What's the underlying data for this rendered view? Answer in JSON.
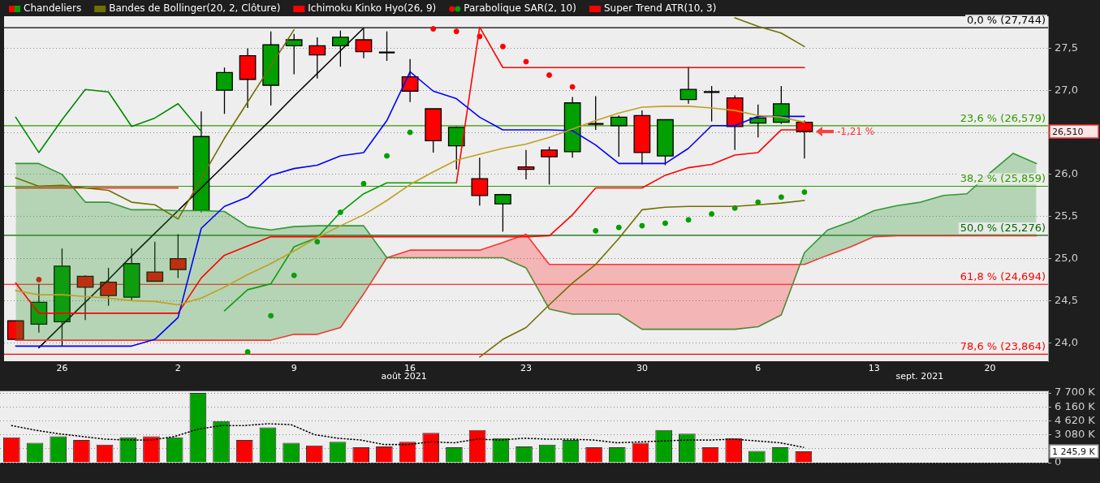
{
  "chart_data": [
    {
      "type": "candlestick",
      "categories": [
        null,
        null,
        "26",
        null,
        null,
        null,
        null,
        "2",
        null,
        null,
        null,
        null,
        "9",
        null,
        null,
        null,
        null,
        "16",
        null,
        null,
        null,
        null,
        "23",
        null,
        null,
        null,
        null,
        "30",
        null,
        null,
        null,
        null,
        "6",
        null,
        null,
        null,
        null,
        "13",
        null,
        null,
        null,
        null,
        "20",
        null,
        null
      ],
      "series": [
        {
          "name": "Chandeliers",
          "ohlc": [
            [
              24.26,
              24.26,
              24.04,
              24.04
            ],
            [
              24.22,
              24.7,
              24.12,
              24.48
            ],
            [
              24.25,
              25.12,
              23.96,
              24.91
            ],
            [
              24.79,
              24.8,
              24.27,
              24.66
            ],
            [
              24.72,
              24.89,
              24.44,
              24.56
            ],
            [
              24.54,
              25.12,
              24.5,
              24.94
            ],
            [
              24.84,
              25.2,
              24.73,
              24.73
            ],
            [
              25.0,
              25.29,
              24.77,
              24.87
            ],
            [
              25.57,
              26.75,
              25.55,
              26.45
            ],
            [
              27.0,
              27.27,
              26.72,
              27.21
            ],
            [
              27.41,
              27.5,
              26.79,
              27.13
            ],
            [
              27.06,
              27.7,
              26.82,
              27.54
            ],
            [
              27.53,
              27.67,
              27.19,
              27.6
            ],
            [
              27.53,
              27.63,
              27.14,
              27.42
            ],
            [
              27.53,
              27.71,
              27.28,
              27.63
            ],
            [
              27.6,
              27.73,
              27.38,
              27.46
            ],
            [
              27.45,
              27.7,
              27.35,
              27.45
            ],
            [
              27.16,
              27.37,
              26.86,
              26.99
            ],
            [
              26.78,
              26.78,
              26.26,
              26.4
            ],
            [
              26.34,
              26.57,
              26.06,
              26.56
            ],
            [
              25.95,
              26.2,
              25.63,
              25.75
            ],
            [
              25.65,
              25.77,
              25.32,
              25.76
            ],
            [
              26.09,
              26.29,
              25.94,
              26.06
            ],
            [
              26.29,
              26.33,
              25.88,
              26.21
            ],
            [
              26.27,
              26.92,
              26.2,
              26.85
            ],
            [
              26.6,
              26.93,
              26.53,
              26.6
            ],
            [
              26.58,
              26.7,
              26.21,
              26.68
            ],
            [
              26.7,
              26.76,
              26.12,
              26.26
            ],
            [
              26.22,
              26.65,
              26.11,
              26.65
            ],
            [
              26.89,
              27.28,
              26.84,
              27.01
            ],
            [
              26.98,
              27.05,
              26.63,
              26.98
            ],
            [
              26.91,
              26.94,
              26.29,
              26.57
            ],
            [
              26.61,
              26.83,
              26.44,
              26.67
            ],
            [
              26.62,
              27.05,
              26.6,
              26.84
            ],
            [
              26.62,
              26.64,
              26.19,
              26.51
            ],
            null,
            null,
            null,
            null,
            null,
            null,
            null,
            null,
            null,
            null
          ],
          "colors": [
            "#ff0000",
            "#00a000",
            "#00a000",
            "#ff0000",
            "#ff0000",
            "#00a000",
            "#ff0000",
            "#ff0000",
            "#00a000",
            "#00a000",
            "#ff0000",
            "#00a000",
            "#00a000",
            "#ff0000",
            "#00a000",
            "#ff0000",
            "#000000",
            "#ff0000",
            "#ff0000",
            "#00a000",
            "#ff0000",
            "#00a000",
            "#ff0000",
            "#ff0000",
            "#00a000",
            "#000000",
            "#00a000",
            "#ff0000",
            "#00a000",
            "#00a000",
            "#000000",
            "#ff0000",
            "#00a000",
            "#00a000",
            "#ff0000",
            null,
            null,
            null,
            null,
            null,
            null,
            null,
            null,
            null,
            null
          ]
        },
        {
          "type": "line",
          "name": "Bandes de Bollinger(20, 2, Clôture)",
          "color": "#707000",
          "values": [
            25.96,
            25.86,
            25.87,
            25.84,
            25.81,
            25.67,
            25.64,
            25.47,
            25.95,
            26.43,
            26.86,
            27.29,
            27.72,
            null,
            null,
            null,
            null,
            null,
            null,
            null,
            null,
            null,
            null,
            null,
            null,
            null,
            null,
            null,
            null,
            null,
            null,
            27.86,
            27.76,
            27.68,
            27.52,
            null,
            null,
            null,
            null,
            null,
            null,
            null,
            null,
            null,
            null
          ]
        },
        {
          "type": "line",
          "color": "#c0a020",
          "values": [
            24.62,
            24.57,
            24.57,
            24.55,
            24.53,
            24.5,
            24.49,
            24.45,
            24.53,
            24.66,
            24.81,
            24.94,
            25.09,
            25.25,
            25.39,
            25.52,
            25.69,
            25.88,
            26.03,
            26.17,
            26.24,
            26.31,
            26.36,
            26.44,
            26.54,
            26.64,
            26.73,
            26.8,
            26.81,
            26.81,
            26.79,
            26.76,
            26.7,
            26.68,
            26.62,
            null,
            null,
            null,
            null,
            null,
            null,
            null,
            null,
            null,
            null
          ]
        },
        {
          "type": "line",
          "color": "#707000",
          "values": [
            null,
            null,
            null,
            null,
            null,
            null,
            null,
            null,
            null,
            null,
            null,
            null,
            null,
            null,
            null,
            null,
            null,
            null,
            null,
            null,
            23.83,
            24.04,
            24.18,
            24.45,
            24.71,
            24.93,
            25.24,
            25.58,
            25.61,
            25.62,
            25.62,
            25.62,
            25.64,
            25.66,
            25.69,
            null,
            null,
            null,
            null,
            null,
            null,
            null,
            null,
            null,
            null
          ]
        },
        {
          "type": "line",
          "color": "#0000ff",
          "values": [
            23.96,
            23.96,
            23.96,
            23.96,
            23.96,
            23.96,
            24.04,
            24.3,
            25.36,
            25.62,
            25.73,
            25.99,
            26.07,
            26.11,
            26.22,
            26.26,
            26.64,
            27.22,
            26.99,
            26.9,
            26.68,
            26.53,
            26.53,
            26.53,
            26.52,
            26.35,
            26.13,
            26.13,
            26.13,
            26.31,
            26.58,
            26.58,
            26.69,
            26.69,
            26.69,
            null,
            null,
            null,
            null,
            null,
            null,
            null,
            null,
            null,
            null
          ]
        },
        {
          "type": "line",
          "name": "Ichimoku Kinko Hyo(26, 9)",
          "color": "#ff0000",
          "values": [
            24.71,
            24.35,
            24.35,
            24.35,
            24.35,
            24.35,
            24.35,
            24.35,
            24.77,
            25.04,
            25.15,
            25.26,
            25.26,
            25.26,
            25.26,
            25.26,
            25.26,
            25.26,
            25.26,
            25.26,
            25.26,
            25.26,
            25.26,
            25.27,
            25.52,
            25.84,
            25.84,
            25.84,
            25.99,
            26.08,
            26.12,
            26.23,
            26.26,
            26.53,
            26.53,
            null,
            null,
            null,
            null,
            null,
            null,
            null,
            null,
            null,
            null
          ]
        },
        {
          "type": "line",
          "color": "#008800",
          "values": [
            26.68,
            26.26,
            26.65,
            27.01,
            26.98,
            26.57,
            26.67,
            26.84,
            26.51,
            null,
            null,
            null,
            null,
            null,
            null,
            null,
            null,
            null,
            null,
            null,
            null,
            null,
            null,
            null,
            null,
            null,
            null,
            null,
            null,
            null,
            null,
            null,
            null,
            null,
            null,
            null,
            null,
            null,
            null,
            null,
            null,
            null,
            null,
            null,
            null
          ]
        },
        {
          "type": "line",
          "color": "#339933",
          "lower": [
            24.03,
            24.03,
            24.03,
            24.03,
            24.03,
            24.03,
            24.03,
            24.03,
            24.03,
            24.03,
            24.03,
            24.03,
            24.1,
            24.1,
            24.18,
            24.58,
            25.01,
            25.1,
            25.1,
            25.1,
            25.1,
            25.19,
            25.29,
            24.93,
            24.93,
            24.93,
            24.93,
            24.93,
            24.93,
            24.93,
            24.93,
            24.93,
            24.93,
            24.93,
            24.93,
            25.04,
            25.14,
            25.26,
            25.27,
            25.27,
            25.27,
            25.27,
            25.27,
            25.27,
            25.27
          ],
          "upper": [
            26.13,
            26.13,
            26.0,
            25.67,
            25.67,
            25.58,
            25.58,
            25.57,
            25.57,
            25.56,
            25.38,
            25.34,
            25.38,
            25.39,
            25.39,
            25.39,
            25.01,
            25.01,
            25.01,
            25.01,
            25.01,
            25.01,
            24.89,
            24.4,
            24.34,
            24.34,
            24.34,
            24.16,
            24.16,
            24.16,
            24.16,
            24.16,
            24.19,
            24.33,
            25.07,
            25.34,
            25.44,
            25.57,
            25.63,
            25.67,
            25.75,
            25.77,
            26.02,
            26.25,
            26.13
          ],
          "values": [
            26.13,
            26.13,
            26.0,
            25.67,
            25.67,
            25.58,
            25.58,
            25.57,
            25.57,
            25.56,
            25.38,
            25.34,
            25.38,
            25.39,
            25.39,
            25.39,
            25.01,
            25.01,
            25.01,
            25.01,
            25.01,
            25.01,
            24.89,
            24.4,
            24.34,
            24.34,
            24.34,
            24.16,
            24.16,
            24.16,
            24.16,
            24.16,
            24.19,
            24.33,
            25.07,
            25.34,
            25.44,
            25.57,
            25.63,
            25.67,
            25.75,
            25.77,
            26.02,
            26.25,
            26.13
          ]
        },
        {
          "type": "line",
          "color": "#ff3333",
          "values": [
            24.03,
            24.03,
            24.03,
            24.03,
            24.03,
            24.03,
            24.03,
            24.03,
            24.03,
            24.03,
            24.03,
            24.03,
            24.1,
            24.1,
            24.18,
            24.58,
            25.01,
            25.1,
            25.1,
            25.1,
            25.1,
            25.19,
            25.29,
            24.93,
            24.93,
            24.93,
            24.93,
            24.93,
            24.93,
            24.93,
            24.93,
            24.93,
            24.93,
            24.93,
            24.93,
            25.04,
            25.14,
            25.26,
            25.27,
            25.27,
            25.27,
            25.27,
            25.27,
            25.27,
            25.27
          ]
        },
        {
          "type": "scatter",
          "name": "Parabolique SAR(2, 10)",
          "marker": "circle",
          "values": [
            null,
            24.75,
            null,
            null,
            null,
            null,
            null,
            null,
            null,
            null,
            23.89,
            24.32,
            24.8,
            25.2,
            25.55,
            25.89,
            26.22,
            26.5,
            27.73,
            27.7,
            27.64,
            27.52,
            27.34,
            27.18,
            27.04,
            25.33,
            25.37,
            25.39,
            25.42,
            25.46,
            25.53,
            25.6,
            25.67,
            25.73,
            25.79,
            null,
            null,
            null,
            null,
            null,
            null,
            null,
            null,
            null,
            null
          ],
          "colors": [
            null,
            "#ff0000",
            null,
            null,
            null,
            null,
            null,
            null,
            null,
            null,
            "#00a000",
            "#00a000",
            "#00a000",
            "#00a000",
            "#00a000",
            "#00a000",
            "#00a000",
            "#00a000",
            "#ff0000",
            "#ff0000",
            "#ff0000",
            "#ff0000",
            "#ff0000",
            "#ff0000",
            "#ff0000",
            "#00a000",
            "#00a000",
            "#00a000",
            "#00a000",
            "#00a000",
            "#00a000",
            "#00a000",
            "#00a000",
            "#00a000",
            "#00a000",
            null,
            null,
            null,
            null,
            null,
            null,
            null,
            null,
            null,
            null
          ]
        },
        {
          "type": "line",
          "name": "Super Trend ATR(10, 3)",
          "color": "#ff0000",
          "values": [
            25.84,
            25.84,
            25.84,
            25.84,
            25.84,
            25.84,
            25.84,
            25.84,
            null,
            null,
            null,
            null,
            null,
            null,
            null,
            null,
            null,
            null,
            null,
            25.9,
            27.75,
            27.27,
            27.27,
            27.27,
            27.27,
            27.27,
            27.27,
            27.27,
            27.27,
            27.27,
            27.27,
            27.27,
            27.27,
            27.27,
            27.27,
            null,
            null,
            null,
            null,
            null,
            null,
            null,
            null,
            null,
            null
          ]
        },
        {
          "type": "line",
          "color": "#00a000",
          "values": [
            null,
            null,
            null,
            null,
            null,
            null,
            null,
            null,
            null,
            24.38,
            24.63,
            24.7,
            25.14,
            25.25,
            25.55,
            25.77,
            25.9,
            25.9,
            25.9,
            25.9,
            null,
            null,
            null,
            null,
            null,
            null,
            null,
            null,
            null,
            null,
            null,
            null,
            null,
            null,
            null,
            null,
            null,
            null,
            null,
            null,
            null,
            null,
            null,
            null,
            null
          ]
        },
        {
          "type": "line",
          "color": "#000000",
          "values": [
            null,
            23.94,
            24.21,
            24.48,
            24.75,
            25.03,
            25.3,
            25.57,
            25.84,
            26.11,
            26.38,
            26.65,
            26.93,
            27.2,
            27.47,
            27.74,
            null,
            null,
            null,
            null,
            null,
            null,
            null,
            null,
            null,
            null,
            null,
            null,
            null,
            null,
            null,
            null,
            null,
            null,
            null,
            null,
            null,
            null,
            null,
            null,
            null,
            null,
            null,
            null,
            null
          ]
        }
      ],
      "ylim": [
        23.78,
        27.88
      ],
      "yticks": [
        {
          "value": 24.0,
          "label": "24,0"
        },
        {
          "value": 24.5,
          "label": "24,5"
        },
        {
          "value": 25.0,
          "label": "25,0"
        },
        {
          "value": 25.5,
          "label": "25,5"
        },
        {
          "value": 26.0,
          "label": "26,0"
        },
        {
          "value": 26.5,
          "label": null
        },
        {
          "value": 27.0,
          "label": "27,0"
        },
        {
          "value": 27.5,
          "label": "27,5"
        }
      ],
      "grid": "y",
      "legend": "top left",
      "ref_lines": [
        {
          "axis": "y",
          "value": 27.744,
          "label": "0,0 % (27,744)",
          "color": "#000000"
        },
        {
          "axis": "y",
          "value": 26.579,
          "label": "23,6 % (26,579)",
          "color": "#339900"
        },
        {
          "axis": "y",
          "value": 25.859,
          "label": "38,2 % (25,859)",
          "color": "#339900"
        },
        {
          "axis": "y",
          "value": 25.276,
          "label": "50,0 % (25,276)",
          "color": "#006600"
        },
        {
          "axis": "y",
          "value": 24.694,
          "label": "61,8 % (24,694)",
          "color": "#ff0000"
        },
        {
          "axis": "y",
          "value": 23.864,
          "label": "78,6 % (23,864)",
          "color": "#ff0000"
        }
      ],
      "annotations": [
        "août 2021",
        "sept. 2021",
        "-1,21 %",
        "26,510"
      ]
    },
    {
      "type": "bar",
      "categories": [
        null,
        null,
        "26",
        null,
        null,
        null,
        null,
        "2",
        null,
        null,
        null,
        null,
        "9",
        null,
        null,
        null,
        null,
        "16",
        null,
        null,
        null,
        null,
        "23",
        null,
        null,
        null,
        null,
        "30",
        null,
        null,
        null,
        null,
        "6",
        null,
        null,
        null,
        null,
        "13",
        null,
        null,
        null,
        null,
        "20",
        null,
        null
      ],
      "series": [
        {
          "values": [
            2800,
            2200,
            2900,
            2500,
            2000,
            2800,
            2900,
            2800,
            7700,
            4600,
            2500,
            3900,
            2200,
            1900,
            2300,
            1700,
            1800,
            2300,
            3300,
            1700,
            3600,
            2700,
            1800,
            2000,
            2500,
            1700,
            1700,
            2200,
            3600,
            3200,
            1700,
            2700,
            1300,
            1700,
            1245.9,
            null,
            null,
            null,
            null,
            null,
            null,
            null,
            null,
            null,
            null
          ],
          "colors": [
            "#ff0000",
            "#00a000",
            "#00a000",
            "#ff0000",
            "#ff0000",
            "#00a000",
            "#ff0000",
            "#00a000",
            "#00a000",
            "#00a000",
            "#ff0000",
            "#00a000",
            "#00a000",
            "#ff0000",
            "#00a000",
            "#ff0000",
            "#ff0000",
            "#ff0000",
            "#ff0000",
            "#00a000",
            "#ff0000",
            "#00a000",
            "#00a000",
            "#00a000",
            "#00a000",
            "#ff0000",
            "#00a000",
            "#ff0000",
            "#00a000",
            "#00a000",
            "#ff0000",
            "#ff0000",
            "#00a000",
            "#00a000",
            "#ff0000",
            null,
            null,
            null,
            null,
            null,
            null,
            null,
            null,
            null,
            null
          ]
        },
        {
          "type": "line",
          "color": "#000000",
          "line_style": "dotted",
          "values": [
            4100,
            3600,
            3200,
            2900,
            2600,
            2500,
            2500,
            2900,
            3700,
            4100,
            4100,
            4300,
            4200,
            3100,
            2700,
            2500,
            2000,
            2000,
            2300,
            2200,
            2600,
            2500,
            2700,
            2600,
            2600,
            2500,
            2200,
            2300,
            2400,
            2500,
            2500,
            2600,
            2400,
            2200,
            1700,
            null,
            null,
            null,
            null,
            null,
            null,
            null,
            null,
            null,
            null
          ]
        }
      ],
      "ylim": [
        0,
        7900
      ],
      "yticks": [
        0,
        {
          "value": 1540,
          "label": null
        },
        {
          "value": 3080,
          "label": "3 080 K"
        },
        {
          "value": 4620,
          "label": "4 620 K"
        },
        {
          "value": 6160,
          "label": "6 160 K"
        },
        {
          "value": 7700,
          "label": "7 700 K"
        }
      ],
      "grid": "y",
      "tick_labels": "y",
      "annotations": [
        "1 245,9 K"
      ]
    }
  ]
}
